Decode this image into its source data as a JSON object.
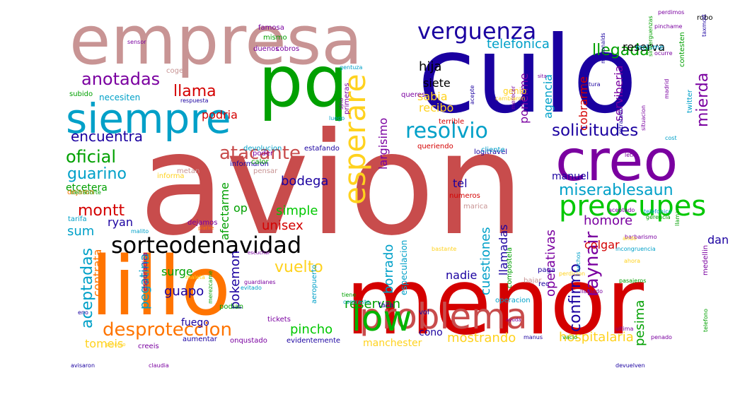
{
  "wordcloud": {
    "words": [
      {
        "text": "avion",
        "color": "#c84c4c"
      },
      {
        "text": "culo",
        "color": "#1a00a0"
      },
      {
        "text": "menor",
        "color": "#d40000"
      },
      {
        "text": "empresa",
        "color": "#c89494"
      },
      {
        "text": "lillo",
        "color": "#ff7400"
      },
      {
        "text": "pq",
        "color": "#00a000"
      },
      {
        "text": "creo",
        "color": "#7a00a0"
      },
      {
        "text": "siempre",
        "color": "#00a0c8"
      },
      {
        "text": "problema",
        "color": "#c84c4c"
      },
      {
        "text": "esperare",
        "color": "#ffd21e"
      },
      {
        "text": "low",
        "color": "#00b400"
      },
      {
        "text": "preocupes",
        "color": "#00c800"
      },
      {
        "text": "sorteodenavidad",
        "color": "#000000"
      },
      {
        "text": "verguenza",
        "color": "#1a00a0"
      },
      {
        "text": "resolvio",
        "color": "#00a0c8"
      },
      {
        "text": "atacante",
        "color": "#c84c4c"
      },
      {
        "text": "desproteccion",
        "color": "#ff7400"
      },
      {
        "text": "aceptadas",
        "color": "#00a0c8"
      },
      {
        "text": "solicitudes",
        "color": "#1a00a0"
      },
      {
        "text": "miserablesaun",
        "color": "#00a0c8"
      },
      {
        "text": "raynair",
        "color": "#7a00a0"
      },
      {
        "text": "confirmo",
        "color": "#1a00a0"
      },
      {
        "text": "anotadas",
        "color": "#7a00a0"
      },
      {
        "text": "oficial",
        "color": "#00a000"
      },
      {
        "text": "guarino",
        "color": "#00a0c8"
      },
      {
        "text": "montt",
        "color": "#d40000"
      },
      {
        "text": "llegada",
        "color": "#00a000"
      },
      {
        "text": "llama",
        "color": "#d40000"
      },
      {
        "text": "encuentra",
        "color": "#1a00a0"
      },
      {
        "text": "vuelto",
        "color": "#ffd21e"
      },
      {
        "text": "pincho",
        "color": "#00c800"
      },
      {
        "text": "mierda",
        "color": "#7a00a0"
      },
      {
        "text": "homore",
        "color": "#7a00a0"
      },
      {
        "text": "mostrando",
        "color": "#ffd21e"
      },
      {
        "text": "telefonica",
        "color": "#00a0c8"
      },
      {
        "text": "sum",
        "color": "#00a0c8"
      },
      {
        "text": "pokemon",
        "color": "#1a00a0"
      },
      {
        "text": "hija",
        "color": "#000000"
      },
      {
        "text": "unisex",
        "color": "#d40000"
      },
      {
        "text": "borrado",
        "color": "#00a0c8"
      },
      {
        "text": "reservan",
        "color": "#00a000"
      },
      {
        "text": "pegatina",
        "color": "#00a0c8"
      },
      {
        "text": "guapo",
        "color": "#1a00a0"
      },
      {
        "text": "cuestiones",
        "color": "#00a0c8"
      },
      {
        "text": "contrata",
        "color": "#ff7400"
      },
      {
        "text": "simple",
        "color": "#00c800"
      },
      {
        "text": "bodega",
        "color": "#1a00a0"
      },
      {
        "text": "llamadas",
        "color": "#1a00a0"
      },
      {
        "text": "operativas",
        "color": "#7a00a0"
      },
      {
        "text": "hospitalaria",
        "color": "#ffd21e"
      },
      {
        "text": "pesima",
        "color": "#00a000"
      },
      {
        "text": "agencia",
        "color": "#00a0c8"
      },
      {
        "text": "cobrarme",
        "color": "#d40000"
      },
      {
        "text": "ponerme",
        "color": "#7a00a0"
      },
      {
        "text": "reserva",
        "color": "#000000"
      },
      {
        "text": "serviberia",
        "color": "#7a00a0"
      },
      {
        "text": "colgar",
        "color": "#d40000"
      },
      {
        "text": "dan",
        "color": "#1a00a0"
      },
      {
        "text": "manuel",
        "color": "#1a00a0"
      },
      {
        "text": "largisimo",
        "color": "#7a00a0"
      },
      {
        "text": "sabia",
        "color": "#ffd21e"
      },
      {
        "text": "siete",
        "color": "#000000"
      },
      {
        "text": "recibo",
        "color": "#ffd21e"
      },
      {
        "text": "podria",
        "color": "#d40000"
      },
      {
        "text": "etcetera",
        "color": "#00a000"
      },
      {
        "text": "afectarme",
        "color": "#00a000"
      },
      {
        "text": "op",
        "color": "#00a000"
      },
      {
        "text": "ryan",
        "color": "#1a00a0"
      },
      {
        "text": "tomeis",
        "color": "#ffd21e"
      },
      {
        "text": "surge",
        "color": "#00a000"
      },
      {
        "text": "fuego",
        "color": "#1a00a0"
      },
      {
        "text": "tel",
        "color": "#1a00a0"
      },
      {
        "text": "nadie",
        "color": "#1a00a0"
      },
      {
        "text": "cono",
        "color": "#1a00a0"
      },
      {
        "text": "manchester",
        "color": "#ffd21e"
      },
      {
        "text": "genio",
        "color": "#ffd21e"
      },
      {
        "text": "necesiten",
        "color": "#00a0c8"
      },
      {
        "text": "subido",
        "color": "#00a000"
      },
      {
        "text": "coger",
        "color": "#c89494"
      },
      {
        "text": "duenos",
        "color": "#7a00a0"
      },
      {
        "text": "mismo",
        "color": "#00a000"
      },
      {
        "text": "cobros",
        "color": "#7a00a0"
      },
      {
        "text": "famosa",
        "color": "#7a00a0"
      },
      {
        "text": "queres",
        "color": "#7a00a0"
      },
      {
        "text": "primeras",
        "color": "#7a00a0"
      },
      {
        "text": "terrible",
        "color": "#d40000"
      },
      {
        "text": "queriendo",
        "color": "#d40000"
      },
      {
        "text": "estafando",
        "color": "#1a00a0"
      },
      {
        "text": "devolucion",
        "color": "#00a0c8"
      },
      {
        "text": "informaron",
        "color": "#1a00a0"
      },
      {
        "text": "logitravel",
        "color": "#1a00a0"
      },
      {
        "text": "metan",
        "color": "#c89494"
      },
      {
        "text": "poder",
        "color": "#7a00a0"
      },
      {
        "text": "pensar",
        "color": "#c89494"
      },
      {
        "text": "calor",
        "color": "#00a000"
      },
      {
        "text": "informa",
        "color": "#ffd21e"
      },
      {
        "text": "dejaron",
        "color": "#ff7400"
      },
      {
        "text": "tarifa",
        "color": "#00a0c8"
      },
      {
        "text": "maleta",
        "color": "#ffd21e"
      },
      {
        "text": "dejamos",
        "color": "#7a00a0"
      },
      {
        "text": "numeros",
        "color": "#d40000"
      },
      {
        "text": "marica",
        "color": "#c89494"
      },
      {
        "text": "especulacion",
        "color": "#00a0c8"
      },
      {
        "text": "compostela",
        "color": "#00a000"
      },
      {
        "text": "medellin",
        "color": "#7a00a0"
      },
      {
        "text": "bajar",
        "color": "#c89494"
      },
      {
        "text": "paga",
        "color": "#1a00a0"
      },
      {
        "text": "rec",
        "color": "#1a00a0"
      },
      {
        "text": "falla",
        "color": "#1a00a0"
      },
      {
        "text": "vol",
        "color": "#1a00a0"
      },
      {
        "text": "aumentar",
        "color": "#1a00a0"
      },
      {
        "text": "onqustado",
        "color": "#7a00a0"
      },
      {
        "text": "evidentemente",
        "color": "#1a00a0"
      },
      {
        "text": "creeis",
        "color": "#7a00a0"
      },
      {
        "text": "podian",
        "color": "#00a000"
      },
      {
        "text": "tickets",
        "color": "#7a00a0"
      },
      {
        "text": "aeropuerto",
        "color": "#00a0c8"
      },
      {
        "text": "merezcame",
        "color": "#00a000"
      },
      {
        "text": "esporadica",
        "color": "#7a00a0"
      },
      {
        "text": "hechos",
        "color": "#00a0c8"
      },
      {
        "text": "penado",
        "color": "#7a00a0"
      },
      {
        "text": "telefono",
        "color": "#00a000"
      },
      {
        "text": "robo",
        "color": "#000000"
      },
      {
        "text": "reclame",
        "color": "#00a0c8"
      },
      {
        "text": "twitter",
        "color": "#00a0c8"
      },
      {
        "text": "contesten",
        "color": "#00a000"
      },
      {
        "text": "merecer",
        "color": "#7a00a0"
      },
      {
        "text": "cliente",
        "color": "#00a0c8"
      },
      {
        "text": "operacion",
        "color": "#00a0c8"
      },
      {
        "text": "tierranorte",
        "color": "#00a000"
      },
      {
        "text": "malito",
        "color": "#00a0c8"
      },
      {
        "text": "platire",
        "color": "#ff7400"
      },
      {
        "text": "sensor",
        "color": "#7a00a0"
      },
      {
        "text": "telefonico",
        "color": "#00a0c8"
      },
      {
        "text": "barbarismo",
        "color": "#7a00a0"
      },
      {
        "text": "perdicion",
        "color": "#ffd21e"
      },
      {
        "text": "vacio",
        "color": "#00a000"
      },
      {
        "text": "incongruencia",
        "color": "#00a0c8"
      },
      {
        "text": "gerencia",
        "color": "#00a000"
      },
      {
        "text": "manus",
        "color": "#1a00a0"
      },
      {
        "text": "acepte",
        "color": "#1a00a0"
      },
      {
        "text": "cambiaron",
        "color": "#ffd21e"
      },
      {
        "text": "sita",
        "color": "#7a00a0"
      },
      {
        "text": "sino",
        "color": "#7a00a0"
      },
      {
        "text": "luego",
        "color": "#00a0c8"
      },
      {
        "text": "ocurre",
        "color": "#7a00a0"
      },
      {
        "text": "madrid",
        "color": "#7a00a0"
      },
      {
        "text": "cost",
        "color": "#00a0c8"
      },
      {
        "text": "letra",
        "color": "#7a00a0"
      },
      {
        "text": "eno",
        "color": "#1a00a0"
      },
      {
        "text": "tiene",
        "color": "#00a000"
      },
      {
        "text": "contraste",
        "color": "#00a0c8"
      },
      {
        "text": "evitado",
        "color": "#00a0c8"
      },
      {
        "text": "llamado",
        "color": "#7a00a0"
      },
      {
        "text": "ahora",
        "color": "#ffd21e"
      },
      {
        "text": "perdimos",
        "color": "#7a00a0"
      },
      {
        "text": "retratado",
        "color": "#1a00a0"
      },
      {
        "text": "sinverguenzas",
        "color": "#00a000"
      },
      {
        "text": "mcdonalds",
        "color": "#1a00a0"
      },
      {
        "text": "factura",
        "color": "#1a00a0"
      },
      {
        "text": "aceptado",
        "color": "#7a00a0"
      },
      {
        "text": "ando",
        "color": "#ffd21e"
      },
      {
        "text": "ayuda",
        "color": "#7a00a0"
      },
      {
        "text": "proceso",
        "color": "#ffd21e"
      },
      {
        "text": "gentuza",
        "color": "#00a0c8"
      },
      {
        "text": "ultima",
        "color": "#7a00a0"
      },
      {
        "text": "llamare",
        "color": "#00a000"
      },
      {
        "text": "taxmott",
        "color": "#1a00a0"
      },
      {
        "text": "pinchame",
        "color": "#7a00a0"
      },
      {
        "text": "situacion",
        "color": "#7a00a0"
      },
      {
        "text": "pasajeros",
        "color": "#00a000"
      },
      {
        "text": "bastante",
        "color": "#ffd21e"
      },
      {
        "text": "escuchar",
        "color": "#7a00a0"
      },
      {
        "text": "guardianes",
        "color": "#7a00a0"
      },
      {
        "text": "respuesta",
        "color": "#1a00a0"
      },
      {
        "text": "devuelven",
        "color": "#1a00a0"
      },
      {
        "text": "avisaron",
        "color": "#1a00a0"
      },
      {
        "text": "claudia",
        "color": "#7a00a0"
      }
    ]
  }
}
